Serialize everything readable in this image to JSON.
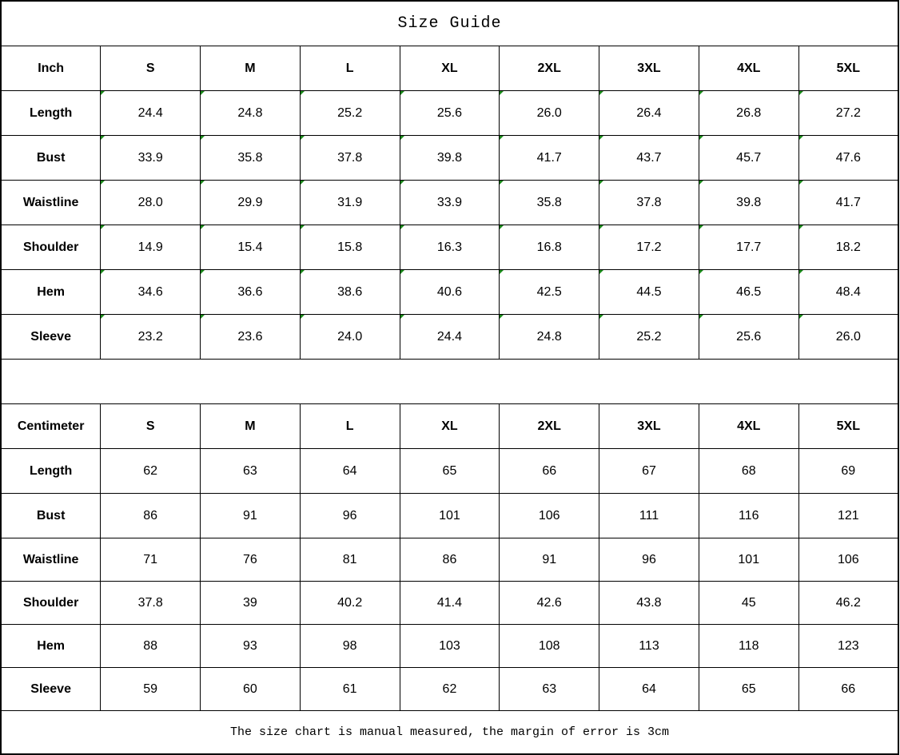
{
  "title": "Size Guide",
  "sizes": [
    "S",
    "M",
    "L",
    "XL",
    "2XL",
    "3XL",
    "4XL",
    "5XL"
  ],
  "inch": {
    "unit_label": "Inch",
    "rows": [
      {
        "label": "Length",
        "values": [
          "24.4",
          "24.8",
          "25.2",
          "25.6",
          "26.0",
          "26.4",
          "26.8",
          "27.2"
        ]
      },
      {
        "label": "Bust",
        "values": [
          "33.9",
          "35.8",
          "37.8",
          "39.8",
          "41.7",
          "43.7",
          "45.7",
          "47.6"
        ]
      },
      {
        "label": "Waistline",
        "values": [
          "28.0",
          "29.9",
          "31.9",
          "33.9",
          "35.8",
          "37.8",
          "39.8",
          "41.7"
        ]
      },
      {
        "label": "Shoulder",
        "values": [
          "14.9",
          "15.4",
          "15.8",
          "16.3",
          "16.8",
          "17.2",
          "17.7",
          "18.2"
        ]
      },
      {
        "label": "Hem",
        "values": [
          "34.6",
          "36.6",
          "38.6",
          "40.6",
          "42.5",
          "44.5",
          "46.5",
          "48.4"
        ]
      },
      {
        "label": "Sleeve",
        "values": [
          "23.2",
          "23.6",
          "24.0",
          "24.4",
          "24.8",
          "25.2",
          "25.6",
          "26.0"
        ]
      }
    ]
  },
  "cm": {
    "unit_label": "Centimeter",
    "rows": [
      {
        "label": "Length",
        "values": [
          "62",
          "63",
          "64",
          "65",
          "66",
          "67",
          "68",
          "69"
        ]
      },
      {
        "label": "Bust",
        "values": [
          "86",
          "91",
          "96",
          "101",
          "106",
          "111",
          "116",
          "121"
        ]
      },
      {
        "label": "Waistline",
        "values": [
          "71",
          "76",
          "81",
          "86",
          "91",
          "96",
          "101",
          "106"
        ]
      },
      {
        "label": "Shoulder",
        "values": [
          "37.8",
          "39",
          "40.2",
          "41.4",
          "42.6",
          "43.8",
          "45",
          "46.2"
        ]
      },
      {
        "label": "Hem",
        "values": [
          "88",
          "93",
          "98",
          "103",
          "108",
          "113",
          "118",
          "123"
        ]
      },
      {
        "label": "Sleeve",
        "values": [
          "59",
          "60",
          "61",
          "62",
          "63",
          "64",
          "65",
          "66"
        ]
      }
    ]
  },
  "footer_note": "The size chart is manual measured, the margin of error is 3cm",
  "colors": {
    "cell_marker": "#1a8a1a"
  }
}
